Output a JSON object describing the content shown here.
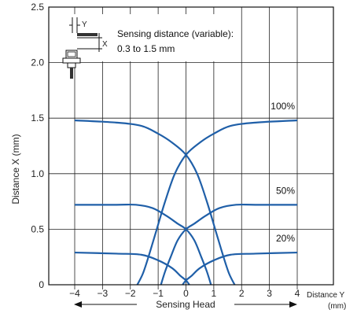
{
  "chart_data": {
    "type": "line",
    "ylabel": "Distance X (mm)",
    "xlabel_line1": "Distance Y",
    "xlabel_line2": "(mm)",
    "sensing_head_label": "Sensing Head",
    "xlim": [
      -4.0,
      4.0
    ],
    "ylim": [
      0.0,
      2.5
    ],
    "x_ticks": [
      {
        "v": -4,
        "label": "−4"
      },
      {
        "v": -3,
        "label": "−3"
      },
      {
        "v": -2,
        "label": "−2"
      },
      {
        "v": -1,
        "label": "−1"
      },
      {
        "v": 0,
        "label": "0"
      },
      {
        "v": 1,
        "label": "1"
      },
      {
        "v": 2,
        "label": "2"
      },
      {
        "v": 3,
        "label": "3"
      },
      {
        "v": 4,
        "label": "4"
      }
    ],
    "y_ticks": [
      {
        "v": 0,
        "label": "0"
      },
      {
        "v": 0.5,
        "label": "0.5"
      },
      {
        "v": 1.0,
        "label": "1.0"
      },
      {
        "v": 1.5,
        "label": "1.5"
      },
      {
        "v": 2.0,
        "label": "2.0"
      },
      {
        "v": 2.5,
        "label": "2.5"
      }
    ],
    "grid": true,
    "line_color": "#1f5fa8",
    "annotation": {
      "line1": "Sensing distance (variable):",
      "line2": "0.3 to 1.5 mm",
      "y_mark": "Y",
      "x_mark": "X"
    },
    "series": [
      {
        "name": "100%",
        "right_curve": [
          [
            -4,
            1.48
          ],
          [
            -2.5,
            1.46
          ],
          [
            -1.6,
            1.43
          ],
          [
            -1.0,
            1.36
          ],
          [
            -0.5,
            1.28
          ],
          [
            0,
            1.17
          ],
          [
            0.4,
            1.0
          ],
          [
            0.75,
            0.75
          ],
          [
            1.05,
            0.5
          ],
          [
            1.35,
            0.25
          ],
          [
            1.55,
            0.1
          ],
          [
            1.75,
            0
          ]
        ],
        "left_curve": [
          [
            4,
            1.48
          ],
          [
            2.5,
            1.46
          ],
          [
            1.6,
            1.43
          ],
          [
            1.0,
            1.36
          ],
          [
            0.5,
            1.28
          ],
          [
            0,
            1.17
          ],
          [
            -0.4,
            1.0
          ],
          [
            -0.75,
            0.75
          ],
          [
            -1.05,
            0.5
          ],
          [
            -1.35,
            0.25
          ],
          [
            -1.55,
            0.1
          ],
          [
            -1.75,
            0
          ]
        ]
      },
      {
        "name": "50%",
        "right_curve": [
          [
            -4,
            0.72
          ],
          [
            -2.5,
            0.72
          ],
          [
            -1.8,
            0.72
          ],
          [
            -1.2,
            0.69
          ],
          [
            -0.7,
            0.62
          ],
          [
            -0.3,
            0.55
          ],
          [
            0,
            0.5
          ],
          [
            0.3,
            0.4
          ],
          [
            0.55,
            0.25
          ],
          [
            0.75,
            0.12
          ],
          [
            0.9,
            0
          ]
        ],
        "left_curve": [
          [
            4,
            0.72
          ],
          [
            2.5,
            0.72
          ],
          [
            1.8,
            0.72
          ],
          [
            1.2,
            0.69
          ],
          [
            0.7,
            0.62
          ],
          [
            0.3,
            0.55
          ],
          [
            0,
            0.5
          ],
          [
            -0.3,
            0.4
          ],
          [
            -0.55,
            0.25
          ],
          [
            -0.75,
            0.12
          ],
          [
            -0.9,
            0
          ]
        ]
      },
      {
        "name": "20%",
        "right_curve": [
          [
            -4,
            0.29
          ],
          [
            -2.5,
            0.28
          ],
          [
            -1.6,
            0.27
          ],
          [
            -1.0,
            0.22
          ],
          [
            -0.5,
            0.15
          ],
          [
            -0.2,
            0.08
          ],
          [
            0,
            0.04
          ],
          [
            0.12,
            0
          ]
        ],
        "left_curve": [
          [
            4,
            0.29
          ],
          [
            2.5,
            0.28
          ],
          [
            1.6,
            0.27
          ],
          [
            1.0,
            0.22
          ],
          [
            0.5,
            0.15
          ],
          [
            0.2,
            0.08
          ],
          [
            0,
            0.04
          ],
          [
            -0.12,
            0
          ]
        ]
      }
    ]
  }
}
